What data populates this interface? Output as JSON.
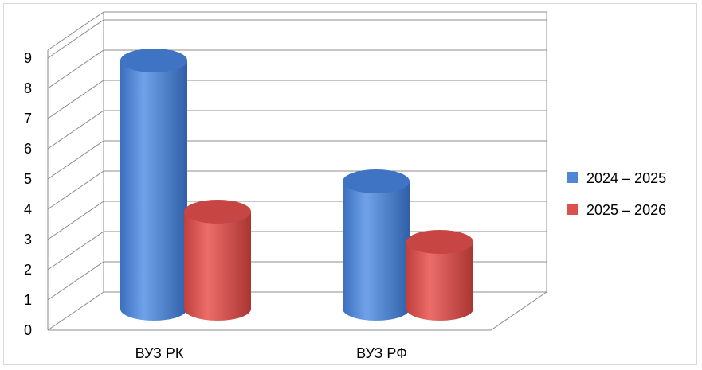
{
  "chart_data": {
    "type": "bar",
    "style": "3d-cylinder",
    "categories": [
      "ВУЗ РК",
      "ВУЗ РФ"
    ],
    "series": [
      {
        "name": "2024 – 2025",
        "values": [
          9,
          5
        ],
        "color": "#4f86d6"
      },
      {
        "name": "2025 – 2026",
        "values": [
          4,
          3
        ],
        "color": "#d9524f"
      }
    ],
    "yticks": [
      "0",
      "1",
      "2",
      "3",
      "4",
      "5",
      "6",
      "7",
      "8",
      "9"
    ],
    "ylim": [
      0,
      9
    ],
    "grid": true,
    "legend_position": "right"
  }
}
